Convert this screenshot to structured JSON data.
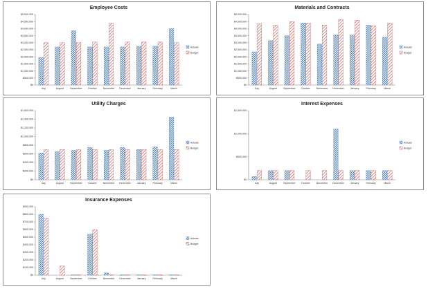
{
  "colors": {
    "actuals": "#4f81bd",
    "budget": "#c0504d",
    "axis": "#808080"
  },
  "chart_data": [
    {
      "type": "bar",
      "title": "Employee Costs",
      "categories": [
        "July",
        "August",
        "September",
        "October",
        "November",
        "December",
        "January",
        "February",
        "March"
      ],
      "series": [
        {
          "name": "Actuals",
          "values": [
            1950000,
            2700000,
            3850000,
            2700000,
            2700000,
            2700000,
            2750000,
            2750000,
            4000000
          ]
        },
        {
          "name": "Budget",
          "values": [
            3000000,
            3000000,
            3000000,
            3050000,
            4400000,
            3050000,
            3050000,
            3050000,
            3000000
          ]
        }
      ],
      "yticks": [
        "$0",
        "$500,000",
        "$1,000,000",
        "$1,500,000",
        "$2,000,000",
        "$2,500,000",
        "$3,000,000",
        "$3,500,000",
        "$4,000,000",
        "$4,500,000",
        "$5,000,000"
      ],
      "ylim": [
        0,
        5000000
      ],
      "legend": "right",
      "grid": false
    },
    {
      "type": "bar",
      "title": "Materials and Contracts",
      "categories": [
        "July",
        "August",
        "September",
        "October",
        "November",
        "December",
        "January",
        "February",
        "March"
      ],
      "series": [
        {
          "name": "Actuals",
          "values": [
            2350000,
            3150000,
            3500000,
            4400000,
            2900000,
            3550000,
            3550000,
            4250000,
            3400000
          ]
        },
        {
          "name": "Budget",
          "values": [
            4350000,
            4250000,
            4500000,
            4400000,
            4250000,
            4650000,
            4600000,
            4200000,
            4400000
          ]
        }
      ],
      "yticks": [
        "$0",
        "$500,000",
        "$1,000,000",
        "$1,500,000",
        "$2,000,000",
        "$2,500,000",
        "$3,000,000",
        "$3,500,000",
        "$4,000,000",
        "$4,500,000",
        "$5,000,000"
      ],
      "ylim": [
        0,
        5000000
      ],
      "legend": "right",
      "grid": false
    },
    {
      "type": "bar",
      "title": "Utility Charges",
      "categories": [
        "July",
        "August",
        "September",
        "October",
        "November",
        "December",
        "January",
        "February",
        "March"
      ],
      "series": [
        {
          "name": "Actuals",
          "values": [
            620000,
            650000,
            680000,
            750000,
            680000,
            750000,
            700000,
            760000,
            1450000
          ]
        },
        {
          "name": "Budget",
          "values": [
            700000,
            700000,
            700000,
            700000,
            700000,
            700000,
            700000,
            700000,
            700000
          ]
        }
      ],
      "yticks": [
        "$0",
        "$200,000",
        "$400,000",
        "$600,000",
        "$800,000",
        "$1,000,000",
        "$1,200,000",
        "$1,400,000",
        "$1,600,000"
      ],
      "ylim": [
        0,
        1600000
      ],
      "legend": "right",
      "grid": false
    },
    {
      "type": "bar",
      "title": "Interest Expenses",
      "categories": [
        "July",
        "August",
        "September",
        "October",
        "November",
        "December",
        "January",
        "February",
        "March"
      ],
      "series": [
        {
          "name": "Actuals",
          "values": [
            70000,
            200000,
            200000,
            0,
            0,
            1100000,
            200000,
            200000,
            200000
          ]
        },
        {
          "name": "Budget",
          "values": [
            200000,
            200000,
            200000,
            200000,
            200000,
            200000,
            200000,
            200000,
            200000
          ]
        }
      ],
      "yticks": [
        "$0",
        "$500,000",
        "$1,000,000",
        "$1,500,000"
      ],
      "ylim": [
        0,
        1500000
      ],
      "legend": "right",
      "grid": false
    },
    {
      "type": "bar",
      "title": "Insurance Expenses",
      "categories": [
        "July",
        "August",
        "September",
        "October",
        "November",
        "December",
        "January",
        "February",
        "March"
      ],
      "series": [
        {
          "name": "Actuals",
          "values": [
            800000,
            0,
            5000,
            540000,
            30000,
            5000,
            5000,
            5000,
            5000
          ]
        },
        {
          "name": "Budget",
          "values": [
            750000,
            120000,
            5000,
            600000,
            5000,
            5000,
            5000,
            5000,
            5000
          ]
        }
      ],
      "yticks": [
        "$0",
        "$100,000",
        "$200,000",
        "$300,000",
        "$400,000",
        "$500,000",
        "$600,000",
        "$700,000",
        "$800,000",
        "$900,000"
      ],
      "ylim": [
        0,
        900000
      ],
      "legend": "right",
      "grid": false
    }
  ]
}
